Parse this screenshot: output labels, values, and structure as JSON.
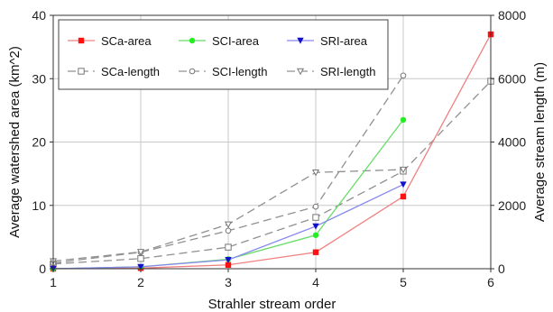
{
  "chart_data": {
    "type": "line",
    "title": "",
    "xlabel": "Strahler stream order",
    "ylabel_left": "Average watershed area (km^2)",
    "ylabel_right": "Average stream length (m)",
    "x_ticks": [
      1,
      2,
      3,
      4,
      5,
      6
    ],
    "y_left_ticks": [
      0,
      10,
      20,
      30,
      40
    ],
    "y_right_ticks": [
      0,
      2000,
      4000,
      6000,
      8000
    ],
    "xlim": [
      1,
      6
    ],
    "ylim_left": [
      0,
      40
    ],
    "ylim_right": [
      0,
      8000
    ],
    "grid": true,
    "legend_position": "top-left",
    "series": [
      {
        "name": "SCa-area",
        "axis": "left",
        "color": "#f08080",
        "marker": "square",
        "marker_color": "#ff1111",
        "style": "solid",
        "x": [
          1,
          2,
          3,
          4,
          5,
          6
        ],
        "values": [
          0.0,
          0.1,
          0.6,
          2.6,
          11.4,
          37.0
        ]
      },
      {
        "name": "SCI-area",
        "axis": "left",
        "color": "#66dd66",
        "marker": "circle",
        "marker_color": "#22ee22",
        "style": "solid",
        "x": [
          1,
          2,
          3,
          4,
          5
        ],
        "values": [
          0.0,
          0.3,
          1.5,
          5.3,
          23.5
        ]
      },
      {
        "name": "SRI-area",
        "axis": "left",
        "color": "#8888ee",
        "marker": "triangle-down",
        "marker_color": "#1111cc",
        "style": "solid",
        "x": [
          1,
          2,
          3,
          4,
          5
        ],
        "values": [
          0.0,
          0.3,
          1.4,
          6.7,
          13.3
        ]
      },
      {
        "name": "SCa-length",
        "axis": "right",
        "color": "#909090",
        "marker": "square-open",
        "marker_color": "#777777",
        "style": "dashed",
        "x": [
          1,
          2,
          3,
          4,
          5,
          6
        ],
        "values": [
          150,
          320,
          680,
          1620,
          3080,
          5920
        ]
      },
      {
        "name": "SCI-length",
        "axis": "right",
        "color": "#909090",
        "marker": "circle-open",
        "marker_color": "#777777",
        "style": "dashed",
        "x": [
          1,
          2,
          3,
          4,
          5
        ],
        "values": [
          180,
          520,
          1200,
          1960,
          6100
        ]
      },
      {
        "name": "SRI-length",
        "axis": "right",
        "color": "#909090",
        "marker": "triangle-open",
        "marker_color": "#777777",
        "style": "dashed",
        "x": [
          1,
          2,
          3,
          4,
          5
        ],
        "values": [
          240,
          530,
          1400,
          3040,
          3130
        ]
      }
    ]
  }
}
